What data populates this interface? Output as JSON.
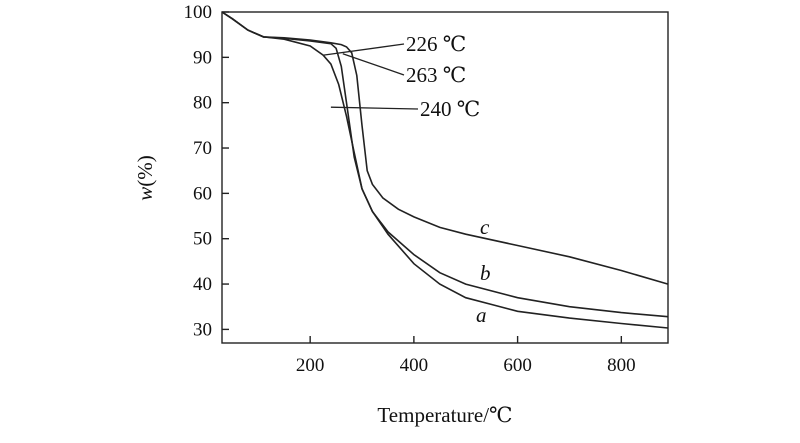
{
  "chart_data": {
    "type": "line",
    "xlabel": "Temperature/℃",
    "ylabel_italic": "w",
    "ylabel_rest": "(%)",
    "xlim": [
      30,
      890
    ],
    "ylim": [
      27,
      100
    ],
    "x_ticks": [
      200,
      400,
      600,
      800
    ],
    "y_ticks": [
      30,
      40,
      50,
      60,
      70,
      80,
      90,
      100
    ],
    "grid": false,
    "series": [
      {
        "name": "a",
        "x": [
          30,
          50,
          80,
          110,
          150,
          200,
          225,
          240,
          255,
          270,
          285,
          300,
          320,
          350,
          400,
          450,
          500,
          550,
          600,
          700,
          800,
          890
        ],
        "y": [
          100,
          98.5,
          96,
          94.5,
          94,
          92.5,
          90.5,
          88.5,
          84,
          77,
          69,
          61,
          56,
          51,
          44.5,
          40,
          37,
          35.5,
          34,
          32.5,
          31.3,
          30.3
        ]
      },
      {
        "name": "b",
        "x": [
          30,
          50,
          80,
          110,
          150,
          200,
          240,
          250,
          260,
          270,
          285,
          300,
          320,
          350,
          400,
          450,
          500,
          600,
          700,
          800,
          890
        ],
        "y": [
          100,
          98.5,
          96,
          94.5,
          94.2,
          93.6,
          93,
          92,
          88,
          80,
          68,
          61,
          56,
          51.5,
          46.5,
          42.5,
          40,
          37,
          35,
          33.7,
          32.8
        ]
      },
      {
        "name": "c",
        "x": [
          30,
          50,
          80,
          110,
          150,
          200,
          240,
          260,
          270,
          280,
          290,
          300,
          310,
          320,
          340,
          370,
          400,
          450,
          500,
          600,
          700,
          800,
          890
        ],
        "y": [
          100,
          98.5,
          96,
          94.5,
          94.3,
          93.8,
          93.2,
          92.8,
          92.3,
          91,
          86,
          75,
          65,
          62,
          59,
          56.5,
          54.8,
          52.5,
          51,
          48.5,
          46,
          43,
          40
        ]
      }
    ],
    "annotations": [
      {
        "label": "226 ℃",
        "x": 226,
        "y": 90.5
      },
      {
        "label": "263 ℃",
        "x": 263,
        "y": 90.8
      },
      {
        "label": "240 ℃",
        "x": 240,
        "y": 79
      }
    ]
  }
}
